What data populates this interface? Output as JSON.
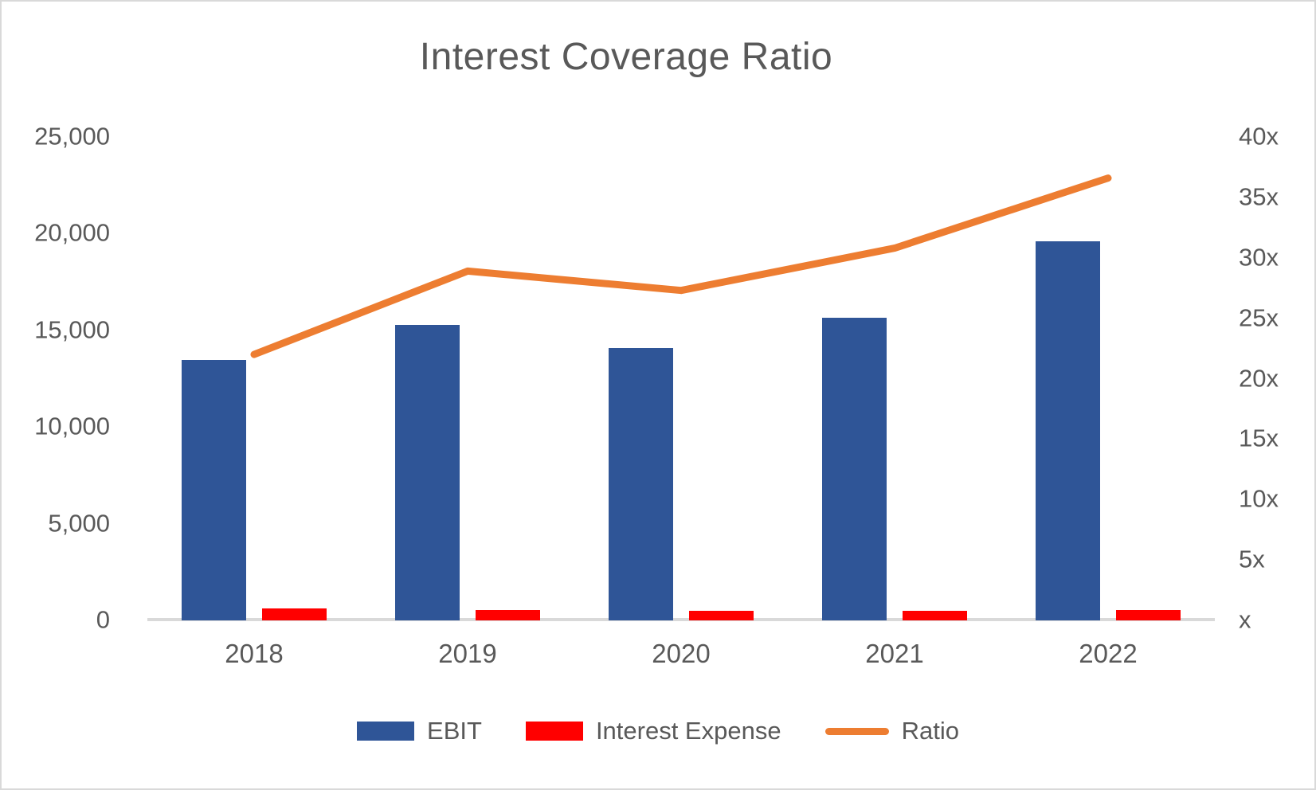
{
  "title": "Interest Coverage Ratio",
  "chart_data": {
    "type": "bar",
    "subtype": "combo-bar-line",
    "categories": [
      "2018",
      "2019",
      "2020",
      "2021",
      "2022"
    ],
    "series": [
      {
        "name": "EBIT",
        "type": "bar",
        "axis": "left",
        "color": "#2F5597",
        "values": [
          13450,
          15300,
          14100,
          15650,
          19600
        ]
      },
      {
        "name": "Interest Expense",
        "type": "bar",
        "axis": "left",
        "color": "#FF0000",
        "values": [
          610,
          530,
          515,
          510,
          535
        ]
      },
      {
        "name": "Ratio",
        "type": "line",
        "axis": "right",
        "color": "#ED7D31",
        "values": [
          22.0,
          28.9,
          27.3,
          30.8,
          36.6
        ]
      }
    ],
    "left_axis": {
      "min": 0,
      "max": 25000,
      "tick_labels": [
        "25,000",
        "20,000",
        "15,000",
        "10,000",
        "5,000",
        "0"
      ]
    },
    "right_axis": {
      "min": 0,
      "max": 40,
      "tick_labels": [
        "40x",
        "35x",
        "30x",
        "25x",
        "20x",
        "15x",
        "10x",
        "5x",
        "x"
      ]
    },
    "grid": false,
    "legend_position": "bottom"
  },
  "colors": {
    "ebit_bar": "#2F5597",
    "interest_bar": "#FF0000",
    "ratio_line": "#ED7D31",
    "text_gray": "#595959",
    "axis_line_gray": "#D9D9D9"
  }
}
